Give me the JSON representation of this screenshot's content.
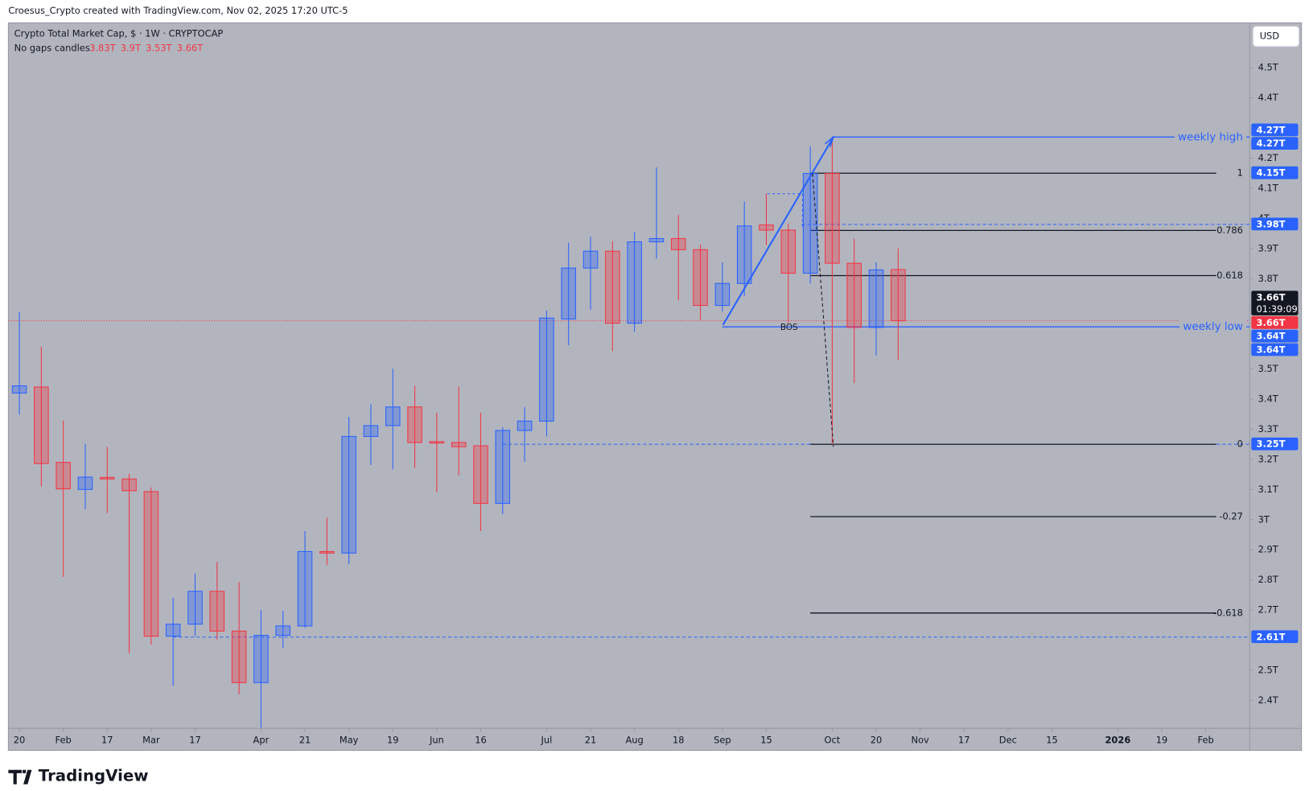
{
  "header": {
    "attribution": "Croesus_Crypto created with TradingView.com, Nov 02, 2025 17:20 UTC-5",
    "brand": "TradingView"
  },
  "chart_data": {
    "type": "candlestick",
    "title": "Crypto Total Market Cap, $ · 1W · CRYPTOCAP",
    "subtitle": "No gaps candles",
    "ohlc_labels": [
      "3.83T",
      "3.9T",
      "3.53T",
      "3.66T"
    ],
    "currency": "USD",
    "up_color": "#2962ff",
    "down_color": "#f23645",
    "categories": [
      null,
      null,
      null,
      null,
      null,
      null,
      null,
      null,
      null,
      null,
      null,
      null,
      null,
      null,
      null,
      null,
      null,
      null,
      null,
      null,
      null,
      null,
      null,
      null,
      null,
      null,
      null,
      null,
      null,
      null,
      null,
      null,
      null,
      null,
      null,
      null,
      null,
      null,
      null,
      null,
      null
    ],
    "open": [
      3.42,
      3.44,
      3.19,
      3.1,
      3.14,
      3.135,
      3.093,
      2.613,
      2.653,
      2.762,
      2.63,
      2.459,
      2.616,
      2.647,
      2.894,
      2.889,
      3.276,
      3.312,
      3.374,
      3.259,
      3.256,
      3.245,
      3.054,
      3.296,
      3.327,
      3.666,
      3.835,
      3.891,
      3.652,
      3.922,
      3.933,
      3.896,
      3.711,
      3.784,
      3.978,
      3.961,
      3.818,
      4.149,
      3.851,
      3.638,
      3.83
    ],
    "high": [
      3.69,
      3.574,
      3.329,
      3.251,
      3.242,
      3.152,
      3.107,
      2.74,
      2.821,
      2.86,
      2.793,
      2.7,
      2.697,
      2.962,
      3.006,
      3.341,
      3.383,
      3.501,
      3.444,
      3.355,
      3.442,
      3.355,
      3.307,
      3.374,
      3.694,
      3.919,
      3.939,
      3.924,
      3.955,
      4.169,
      4.012,
      3.913,
      3.854,
      4.056,
      4.082,
      3.983,
      4.239,
      4.27,
      3.933,
      3.854,
      3.9
    ],
    "low": [
      3.349,
      3.11,
      2.81,
      3.035,
      3.021,
      2.557,
      2.585,
      2.448,
      2.613,
      2.602,
      2.42,
      2.31,
      2.574,
      2.641,
      2.849,
      2.852,
      3.181,
      3.167,
      3.172,
      3.091,
      3.147,
      2.962,
      3.018,
      3.192,
      3.276,
      3.579,
      3.697,
      3.56,
      3.624,
      3.866,
      3.728,
      3.663,
      3.691,
      3.742,
      3.91,
      3.652,
      3.784,
      3.25,
      3.453,
      3.545,
      3.53
    ],
    "close": [
      3.444,
      3.186,
      3.102,
      3.141,
      3.135,
      3.096,
      2.613,
      2.653,
      2.762,
      2.63,
      2.459,
      2.616,
      2.647,
      2.894,
      2.889,
      3.276,
      3.312,
      3.374,
      3.256,
      3.254,
      3.242,
      3.054,
      3.296,
      3.327,
      3.669,
      3.835,
      3.891,
      3.652,
      3.922,
      3.933,
      3.896,
      3.711,
      3.784,
      3.975,
      3.961,
      3.818,
      4.149,
      3.851,
      3.638,
      3.829,
      3.66
    ],
    "xlim": [
      -0.5,
      56
    ],
    "ylim": [
      2.307,
      4.649
    ],
    "xticks": [
      {
        "value": 0,
        "label": "20"
      },
      {
        "value": 2,
        "label": "Feb"
      },
      {
        "value": 4,
        "label": "17"
      },
      {
        "value": 6,
        "label": "Mar"
      },
      {
        "value": 8,
        "label": "17"
      },
      {
        "value": 11,
        "label": "Apr"
      },
      {
        "value": 13,
        "label": "21"
      },
      {
        "value": 15,
        "label": "May"
      },
      {
        "value": 17,
        "label": "19"
      },
      {
        "value": 19,
        "label": "Jun"
      },
      {
        "value": 21,
        "label": "16"
      },
      {
        "value": 24,
        "label": "Jul"
      },
      {
        "value": 26,
        "label": "21"
      },
      {
        "value": 28,
        "label": "Aug"
      },
      {
        "value": 30,
        "label": "18"
      },
      {
        "value": 32,
        "label": "Sep"
      },
      {
        "value": 34,
        "label": "15"
      },
      {
        "value": 37,
        "label": "Oct"
      },
      {
        "value": 39,
        "label": "20"
      },
      {
        "value": 41,
        "label": "Nov"
      },
      {
        "value": 43,
        "label": "17"
      },
      {
        "value": 45,
        "label": "Dec"
      },
      {
        "value": 47,
        "label": "15"
      },
      {
        "value": 50,
        "label": "2026"
      },
      {
        "value": 52,
        "label": "19"
      },
      {
        "value": 54,
        "label": "Feb"
      }
    ],
    "yticks": [
      {
        "value": 4.5,
        "label": "4.5T"
      },
      {
        "value": 4.4,
        "label": "4.4T"
      },
      {
        "value": 4.2,
        "label": "4.2T"
      },
      {
        "value": 4.1,
        "label": "4.1T"
      },
      {
        "value": 4.0,
        "label": "4T"
      },
      {
        "value": 3.9,
        "label": "3.9T"
      },
      {
        "value": 3.8,
        "label": "3.8T"
      },
      {
        "value": 3.5,
        "label": "3.5T"
      },
      {
        "value": 3.4,
        "label": "3.4T"
      },
      {
        "value": 3.3,
        "label": "3.3T"
      },
      {
        "value": 3.2,
        "label": "3.2T"
      },
      {
        "value": 3.1,
        "label": "3.1T"
      },
      {
        "value": 3.0,
        "label": "3T"
      },
      {
        "value": 2.9,
        "label": "2.9T"
      },
      {
        "value": 2.8,
        "label": "2.8T"
      },
      {
        "value": 2.7,
        "label": "2.7T"
      },
      {
        "value": 2.5,
        "label": "2.5T"
      },
      {
        "value": 2.4,
        "label": "2.4T"
      }
    ],
    "levels": [
      {
        "value": 4.27,
        "label": "weekly high",
        "color": "#2962ff",
        "style": "solid",
        "start": 37
      },
      {
        "value": 3.64,
        "label": "weekly low",
        "color": "#2962ff",
        "style": "solid",
        "start": 32
      },
      {
        "value": 3.98,
        "color": "#2962ff",
        "style": "dashed",
        "start": 35.6
      },
      {
        "value": 3.25,
        "color": "#2962ff",
        "style": "dashed",
        "start": 22
      },
      {
        "value": 2.61,
        "color": "#2962ff",
        "style": "dashed",
        "start": 7
      },
      {
        "value": 3.66,
        "color": "#f23645",
        "style": "dotted",
        "start": -0.5
      }
    ],
    "fib_start": 36,
    "fib_levels": [
      {
        "value": 4.15,
        "label": "1"
      },
      {
        "value": 3.96,
        "label": "0.786"
      },
      {
        "value": 3.81,
        "label": "0.618"
      },
      {
        "value": 3.25,
        "label": "0"
      },
      {
        "value": 3.01,
        "label": "-0.27"
      },
      {
        "value": 2.69,
        "label": "-0.618"
      }
    ],
    "annotations": [
      {
        "text": "BOS",
        "value": 3.64
      }
    ],
    "price_labels": [
      {
        "value": 4.27,
        "label": "4.27T",
        "color": "#2962ff"
      },
      {
        "value": 4.27,
        "label": "4.27T",
        "color": "#2962ff"
      },
      {
        "value": 4.15,
        "label": "4.15T",
        "color": "#2962ff"
      },
      {
        "value": 3.98,
        "label": "3.98T",
        "color": "#2962ff"
      },
      {
        "value": 3.66,
        "label": "3.66T",
        "sublabel": "01:39:09",
        "color": "#131722"
      },
      {
        "value": 3.66,
        "label": "3.66T",
        "color": "#f23645"
      },
      {
        "value": 3.64,
        "label": "3.64T",
        "color": "#2962ff"
      },
      {
        "value": 3.64,
        "label": "3.64T",
        "color": "#2962ff"
      },
      {
        "value": 3.25,
        "label": "3.25T",
        "color": "#2962ff"
      },
      {
        "value": 2.61,
        "label": "2.61T",
        "color": "#2962ff"
      }
    ]
  }
}
